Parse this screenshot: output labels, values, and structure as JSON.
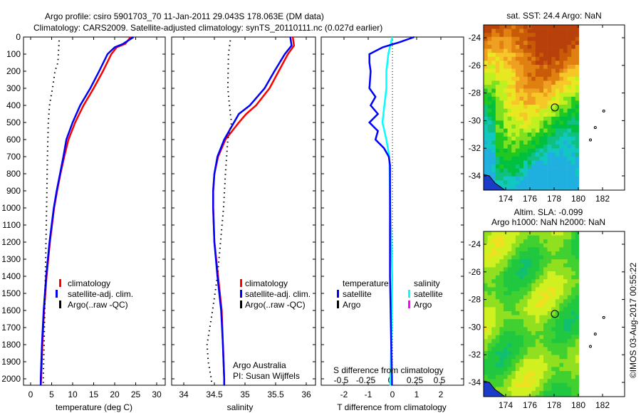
{
  "title": {
    "line1": "Argo profile: csiro 5901703_70 11-Jan-2011 29.043S 178.063E (DM data)",
    "line2": "Climatology: CARS2009. Satellite-adjusted climatology: synTS_20110111.nc (0.027d earlier)"
  },
  "credit": {
    "argo_australia": "Argo Australia",
    "pi": "PI: Susan Wijffels"
  },
  "timestamp": "©IMOS 03-Aug-2017 00:55:22",
  "colors": {
    "climatology": "#ff0000",
    "satellite": "#0000ff",
    "argo": "#000000",
    "sal_satellite": "#00ffff",
    "sal_argo": "#ff00ff"
  },
  "chart_data": [
    {
      "type": "line",
      "xlabel": "temperature (deg C)",
      "ylabel": "",
      "xlim": [
        -1.5,
        31.5
      ],
      "ylim": [
        2040,
        0
      ],
      "xticks": [
        "0",
        "5",
        "10",
        "15",
        "20",
        "25",
        "30"
      ],
      "yticks": [
        "0",
        "100",
        "200",
        "300",
        "400",
        "500",
        "600",
        "700",
        "800",
        "900",
        "1000",
        "1100",
        "1200",
        "1300",
        "1400",
        "1500",
        "1600",
        "1700",
        "1800",
        "1900",
        "2000"
      ],
      "legend": [
        "climatology",
        "satellite-adj. clim.",
        "Argo(..raw -QC)"
      ],
      "series": [
        {
          "name": "climatology",
          "depth": [
            0,
            40,
            60,
            100,
            200,
            300,
            400,
            500,
            600,
            700,
            800,
            900,
            1000,
            1200,
            1400,
            1600,
            1800,
            2000,
            2040
          ],
          "values": [
            23.8,
            22.5,
            20.5,
            19.2,
            17.2,
            15.0,
            12.6,
            10.6,
            9.0,
            8.0,
            7.1,
            6.3,
            5.6,
            4.6,
            3.8,
            3.2,
            2.8,
            2.5,
            2.4
          ]
        },
        {
          "name": "satellite-adj. clim.",
          "depth": [
            0,
            40,
            60,
            100,
            200,
            300,
            400,
            500,
            600,
            700,
            800,
            900,
            1000,
            1200,
            1400,
            1600,
            1800,
            2000,
            2040
          ],
          "values": [
            24.5,
            22.0,
            20.0,
            18.3,
            16.3,
            14.2,
            11.8,
            10.0,
            8.5,
            7.8,
            7.0,
            6.2,
            5.5,
            4.5,
            3.7,
            3.1,
            2.7,
            2.4,
            2.4
          ]
        },
        {
          "name": "Argo(..raw -QC)",
          "depth": [
            20,
            100,
            150,
            200,
            300,
            400,
            500,
            700,
            1000,
            1400,
            1800,
            2000,
            2040
          ],
          "values": [
            6.8,
            6.6,
            6.5,
            5.8,
            5.2,
            4.5,
            4.2,
            4.0,
            3.8,
            3.5,
            3.2,
            3.0,
            3.0
          ]
        }
      ]
    },
    {
      "type": "line",
      "xlabel": "salinity",
      "xlim": [
        33.8,
        36.1
      ],
      "ylim": [
        2040,
        0
      ],
      "xticks": [
        "34",
        "34.5",
        "35",
        "35.5",
        "36"
      ],
      "legend": [
        "climatology",
        "satellite-adj. clim.",
        "Argo(..raw -QC)"
      ],
      "series": [
        {
          "name": "climatology",
          "depth": [
            0,
            50,
            100,
            200,
            300,
            400,
            450,
            500,
            600,
            700,
            800,
            900,
            1000,
            1200,
            1400,
            1600,
            1800,
            2000,
            2040
          ],
          "values": [
            35.78,
            35.8,
            35.7,
            35.55,
            35.4,
            35.18,
            35.02,
            34.9,
            34.68,
            34.56,
            34.5,
            34.48,
            34.48,
            34.5,
            34.56,
            34.62,
            34.64,
            34.66,
            34.66
          ]
        },
        {
          "name": "satellite-adj. clim.",
          "depth": [
            0,
            50,
            100,
            200,
            300,
            400,
            450,
            500,
            600,
            700,
            800,
            900,
            1000,
            1200,
            1400,
            1600,
            1800,
            2000,
            2040
          ],
          "values": [
            35.74,
            35.76,
            35.65,
            35.48,
            35.32,
            35.08,
            34.9,
            34.82,
            34.66,
            34.55,
            34.5,
            34.48,
            34.48,
            34.5,
            34.55,
            34.61,
            34.64,
            34.66,
            34.66
          ]
        },
        {
          "name": "Argo(..raw -QC)",
          "depth": [
            20,
            100,
            300,
            450,
            500,
            600,
            800,
            1000,
            1200,
            1400,
            1600,
            1800,
            1900,
            2000,
            2040
          ],
          "values": [
            34.76,
            34.73,
            34.72,
            34.76,
            34.78,
            34.72,
            34.68,
            34.65,
            34.6,
            34.55,
            34.47,
            34.38,
            34.4,
            34.45,
            34.46
          ]
        }
      ]
    },
    {
      "type": "line",
      "xlabel": "T difference from climatology",
      "top_xlabel": "S difference from climatology",
      "xlim": [
        -2.9,
        2.95
      ],
      "ylim": [
        2040,
        0
      ],
      "xticks": [
        "-2",
        "-1",
        "0",
        "1",
        "2"
      ],
      "top_xticks": [
        "-0.5",
        "-0.25",
        "0",
        "0.25",
        "0.5"
      ],
      "legend": {
        "temperature_title": "temperature",
        "salinity_title": "salinity",
        "t_satellite": "satellite",
        "t_argo": "Argo",
        "s_satellite": "satellite",
        "s_argo": "Argo"
      },
      "series": [
        {
          "name": "temperature satellite",
          "depth": [
            0,
            30,
            60,
            100,
            150,
            200,
            300,
            350,
            400,
            450,
            500,
            550,
            600,
            650,
            700,
            750,
            1000,
            1400,
            1800,
            2000,
            2040
          ],
          "values": [
            0.9,
            0.3,
            -0.4,
            -0.95,
            -0.95,
            -0.9,
            -0.95,
            -0.7,
            -0.9,
            -0.6,
            -0.95,
            -0.6,
            -0.7,
            -0.35,
            -0.15,
            -0.1,
            -0.1,
            -0.1,
            -0.05,
            -0.02,
            -0.02
          ]
        },
        {
          "name": "salinity satellite",
          "depth": [
            0,
            50,
            100,
            200,
            300,
            400,
            500,
            600,
            700,
            1000,
            1400,
            1800,
            2000,
            2040
          ],
          "values": [
            0.02,
            0.0,
            -0.02,
            -0.04,
            -0.04,
            -0.06,
            -0.08,
            -0.04,
            -0.01,
            0.0,
            0.02,
            0.01,
            0.0,
            0.0
          ]
        }
      ]
    },
    {
      "type": "heatmap",
      "title": "sat. SST: 24.4  Argo: NaN",
      "xticks": [
        "174",
        "176",
        "178",
        "180",
        "182"
      ],
      "yticks": [
        "-24",
        "-26",
        "-28",
        "-30",
        "-32",
        "-34"
      ],
      "marker": {
        "lon": 178.063,
        "lat": -29.043
      }
    },
    {
      "type": "heatmap",
      "title": "Altim. SLA: -0.099",
      "subtitle": "Argo h1000: NaN h2000: NaN",
      "xticks": [
        "174",
        "176",
        "178",
        "180",
        "182"
      ],
      "yticks": [
        "-24",
        "-26",
        "-28",
        "-30",
        "-32",
        "-34"
      ],
      "marker": {
        "lon": 178.063,
        "lat": -29.043
      }
    }
  ]
}
